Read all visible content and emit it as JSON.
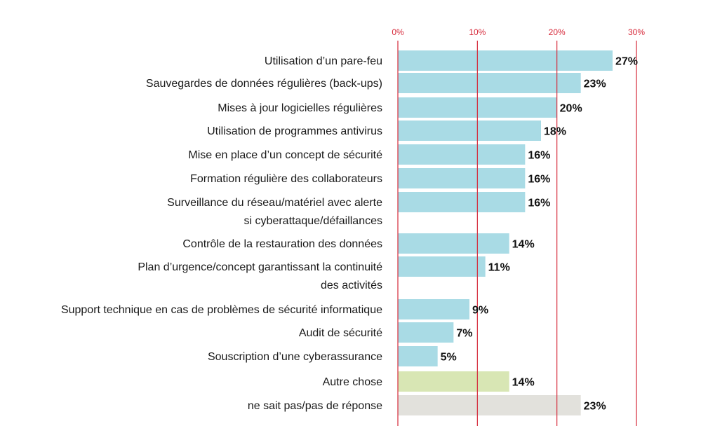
{
  "chart_data": {
    "type": "bar",
    "orientation": "horizontal",
    "title": "",
    "xlabel": "",
    "ylabel": "",
    "xlim": [
      0,
      30
    ],
    "x_ticks": [
      0,
      10,
      20,
      30
    ],
    "x_tick_labels": [
      "0%",
      "10%",
      "20%",
      "30%"
    ],
    "grid": true,
    "colors": {
      "default": "#a9dbe5",
      "autre": "#d8e6b4",
      "ne_sait_pas": "#e2e1dc",
      "gridline": "#d62839",
      "tick_label": "#d62839"
    },
    "categories": [
      {
        "label_lines": [
          "Utilisation d’un pare-feu"
        ],
        "value": 27,
        "value_label": "27%",
        "color_key": "default"
      },
      {
        "label_lines": [
          "Sauvegardes de données régulières (back-ups)"
        ],
        "value": 23,
        "value_label": "23%",
        "color_key": "default"
      },
      {
        "label_lines": [
          "Mises à jour logicielles régulières"
        ],
        "value": 20,
        "value_label": "20%",
        "color_key": "default"
      },
      {
        "label_lines": [
          "Utilisation de programmes antivirus"
        ],
        "value": 18,
        "value_label": "18%",
        "color_key": "default"
      },
      {
        "label_lines": [
          "Mise en place d’un concept de sécurité"
        ],
        "value": 16,
        "value_label": "16%",
        "color_key": "default"
      },
      {
        "label_lines": [
          "Formation régulière des collaborateurs"
        ],
        "value": 16,
        "value_label": "16%",
        "color_key": "default"
      },
      {
        "label_lines": [
          "Surveillance du réseau/matériel avec alerte",
          "si cyberattaque/défaillances"
        ],
        "value": 16,
        "value_label": "16%",
        "color_key": "default"
      },
      {
        "label_lines": [
          "Contrôle de la restauration des données"
        ],
        "value": 14,
        "value_label": "14%",
        "color_key": "default"
      },
      {
        "label_lines": [
          "Plan d’urgence/concept garantissant la continuité",
          "des activités"
        ],
        "value": 11,
        "value_label": "11%",
        "color_key": "default"
      },
      {
        "label_lines": [
          "Support technique en cas de problèmes de sécurité informatique"
        ],
        "value": 9,
        "value_label": "9%",
        "color_key": "default"
      },
      {
        "label_lines": [
          "Audit de sécurité"
        ],
        "value": 7,
        "value_label": "7%",
        "color_key": "default"
      },
      {
        "label_lines": [
          "Souscription d’une cyberassurance"
        ],
        "value": 5,
        "value_label": "5%",
        "color_key": "default"
      },
      {
        "label_lines": [
          "Autre chose"
        ],
        "value": 14,
        "value_label": "14%",
        "color_key": "autre"
      },
      {
        "label_lines": [
          "ne sait pas/pas de réponse"
        ],
        "value": 23,
        "value_label": "23%",
        "color_key": "ne_sait_pas"
      }
    ]
  }
}
